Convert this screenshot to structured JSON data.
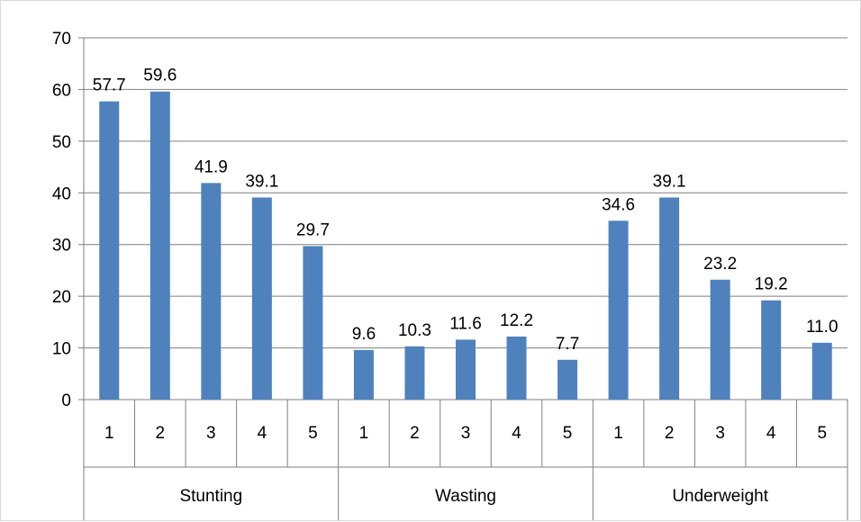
{
  "chart_data": {
    "type": "bar",
    "title": "",
    "xlabel": "",
    "ylabel": "",
    "ylim": [
      0,
      70
    ],
    "yticks": [
      0,
      10,
      20,
      30,
      40,
      50,
      60,
      70
    ],
    "grid": true,
    "legend": "none",
    "bar_color": "#4f81bd",
    "groups": [
      {
        "name": "Stunting",
        "categories": [
          "1",
          "2",
          "3",
          "4",
          "5"
        ],
        "values": [
          57.7,
          59.6,
          41.9,
          39.1,
          29.7
        ],
        "labels": [
          "57.7",
          "59.6",
          "41.9",
          "39.1",
          "29.7"
        ]
      },
      {
        "name": "Wasting",
        "categories": [
          "1",
          "2",
          "3",
          "4",
          "5"
        ],
        "values": [
          9.6,
          10.3,
          11.6,
          12.2,
          7.7
        ],
        "labels": [
          "9.6",
          "10.3",
          "11.6",
          "12.2",
          "7.7"
        ]
      },
      {
        "name": "Underweight",
        "categories": [
          "1",
          "2",
          "3",
          "4",
          "5"
        ],
        "values": [
          34.6,
          39.1,
          23.2,
          19.2,
          11.0
        ],
        "labels": [
          "34.6",
          "39.1",
          "23.2",
          "19.2",
          "11.0"
        ]
      }
    ]
  }
}
